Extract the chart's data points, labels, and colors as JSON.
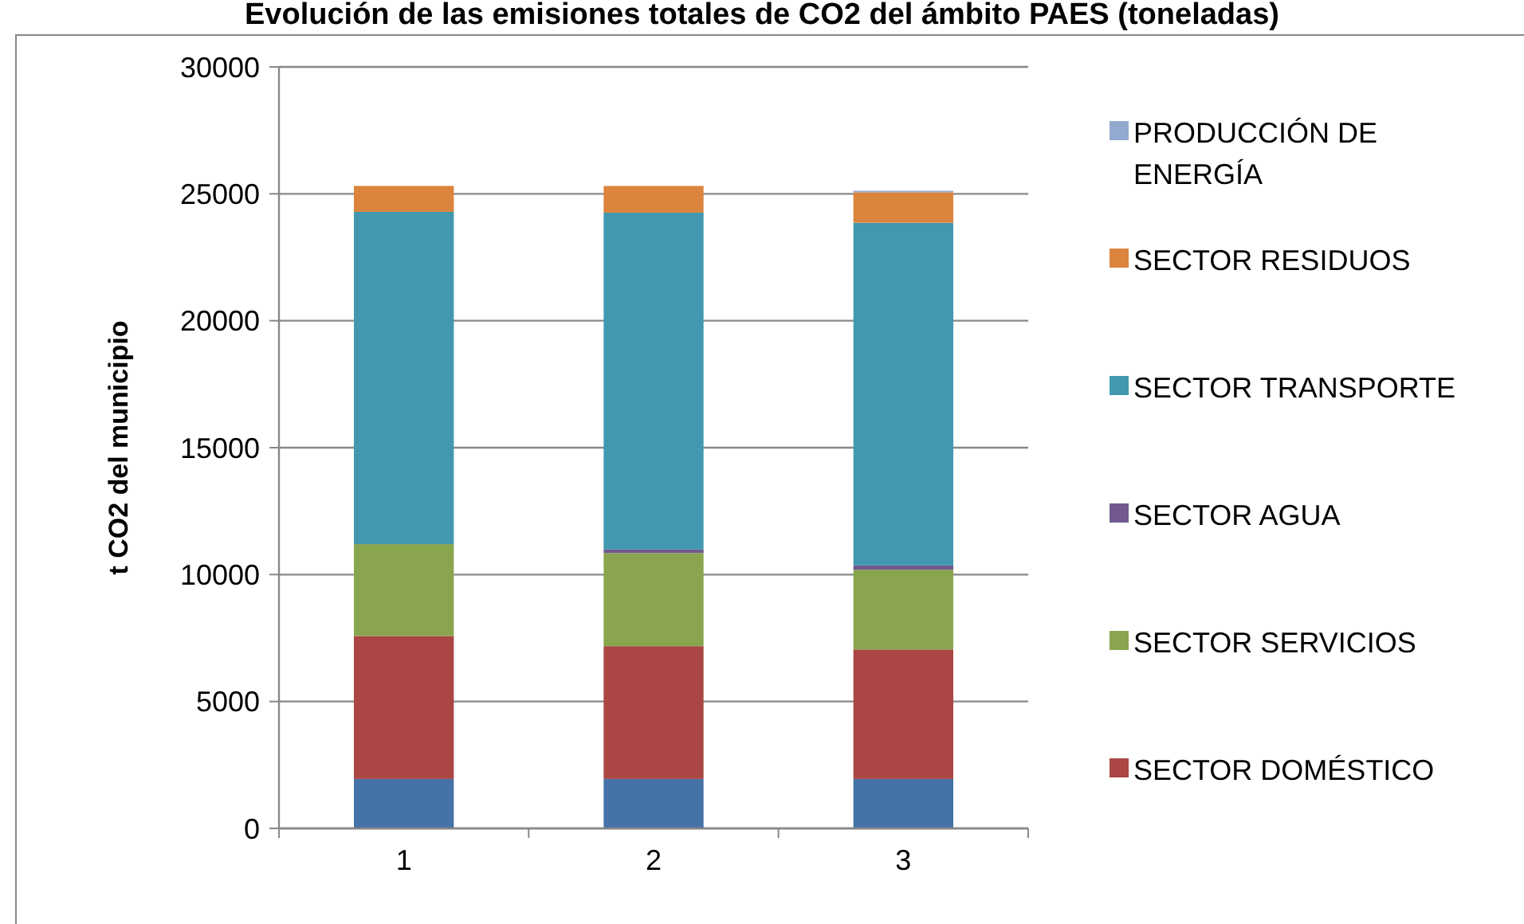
{
  "chart_data": {
    "type": "bar",
    "title": "Evolución de las emisiones totales de CO2 del ámbito PAES (toneladas)",
    "ylabel": "t CO2 del municipio",
    "categories": [
      "1",
      "2",
      "3"
    ],
    "stacked": true,
    "ylim": [
      0,
      30000
    ],
    "yticks": [
      0,
      5000,
      10000,
      15000,
      20000,
      25000,
      30000
    ],
    "grid": "y",
    "legend": "right",
    "series": [
      {
        "color": "#4572a7",
        "values": [
          1950,
          1950,
          1950
        ]
      },
      {
        "name": "SECTOR DOMÉSTICO",
        "color": "#aa4643",
        "values": [
          5630,
          5230,
          5100
        ]
      },
      {
        "name": "SECTOR SERVICIOS",
        "color": "#89a54e",
        "values": [
          3620,
          3670,
          3140
        ]
      },
      {
        "name": "SECTOR AGUA",
        "color": "#71588f",
        "values": [
          0,
          140,
          170
        ]
      },
      {
        "name": "SECTOR TRANSPORTE",
        "color": "#4198af",
        "values": [
          13090,
          13270,
          13500
        ]
      },
      {
        "name": "SECTOR RESIDUOS",
        "color": "#db843d",
        "values": [
          1020,
          1050,
          1200
        ]
      },
      {
        "name": "PRODUCCIÓN DE ENERGÍA",
        "color": "#93a9cf",
        "values": [
          0,
          0,
          60
        ]
      }
    ]
  }
}
